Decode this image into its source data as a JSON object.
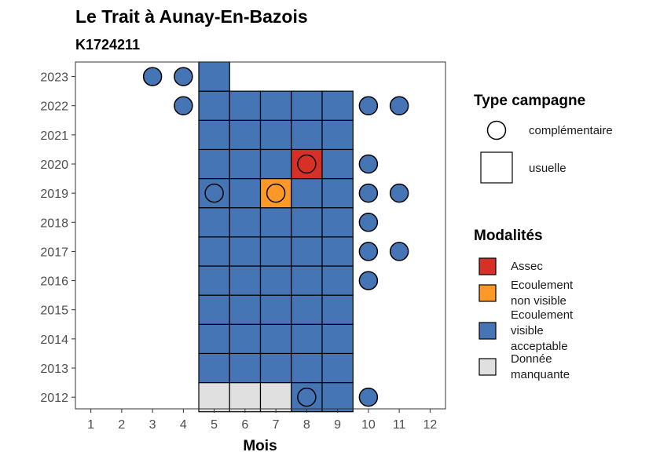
{
  "chart_data": {
    "type": "heatmap",
    "title": "Le Trait à Aunay-En-Bazois",
    "subtitle": "K1724211",
    "xlabel": "Mois",
    "ylabel": "",
    "x_ticks": [
      "1",
      "2",
      "3",
      "4",
      "5",
      "6",
      "7",
      "8",
      "9",
      "10",
      "11",
      "12"
    ],
    "y_ticks": [
      "2012",
      "2013",
      "2014",
      "2015",
      "2016",
      "2017",
      "2018",
      "2019",
      "2020",
      "2021",
      "2022",
      "2023"
    ],
    "xlim": [
      0.5,
      12.5
    ],
    "ylim": [
      2011.6,
      2023.5
    ],
    "grid": false,
    "legend_position": "right",
    "modalites": [
      {
        "key": "assec",
        "label": [
          "Assec"
        ],
        "color": "#d73027"
      },
      {
        "key": "nonvisible",
        "label": [
          "Ecoulement",
          "non visible"
        ],
        "color": "#fe9929"
      },
      {
        "key": "visible",
        "label": [
          "Ecoulement",
          "visible",
          "acceptable"
        ],
        "color": "#4575b4"
      },
      {
        "key": "manquante",
        "label": [
          "Donnée",
          "manquante"
        ],
        "color": "#e0e0e0"
      }
    ],
    "campagne_types": [
      {
        "key": "complementaire",
        "label": "complémentaire",
        "shape": "circle"
      },
      {
        "key": "usuelle",
        "label": "usuelle",
        "shape": "square"
      }
    ],
    "legend_titles": {
      "campagne": "Type campagne",
      "modalites": "Modalités"
    },
    "usuelle": [
      {
        "year": 2012,
        "month": 5,
        "value": "manquante"
      },
      {
        "year": 2012,
        "month": 6,
        "value": "manquante"
      },
      {
        "year": 2012,
        "month": 7,
        "value": "manquante"
      },
      {
        "year": 2012,
        "month": 8,
        "value": "visible"
      },
      {
        "year": 2012,
        "month": 9,
        "value": "visible"
      },
      {
        "year": 2013,
        "month": 5,
        "value": "visible"
      },
      {
        "year": 2013,
        "month": 6,
        "value": "visible"
      },
      {
        "year": 2013,
        "month": 7,
        "value": "visible"
      },
      {
        "year": 2013,
        "month": 8,
        "value": "visible"
      },
      {
        "year": 2013,
        "month": 9,
        "value": "visible"
      },
      {
        "year": 2014,
        "month": 5,
        "value": "visible"
      },
      {
        "year": 2014,
        "month": 6,
        "value": "visible"
      },
      {
        "year": 2014,
        "month": 7,
        "value": "visible"
      },
      {
        "year": 2014,
        "month": 8,
        "value": "visible"
      },
      {
        "year": 2014,
        "month": 9,
        "value": "visible"
      },
      {
        "year": 2015,
        "month": 5,
        "value": "visible"
      },
      {
        "year": 2015,
        "month": 6,
        "value": "visible"
      },
      {
        "year": 2015,
        "month": 7,
        "value": "visible"
      },
      {
        "year": 2015,
        "month": 8,
        "value": "visible"
      },
      {
        "year": 2015,
        "month": 9,
        "value": "visible"
      },
      {
        "year": 2016,
        "month": 5,
        "value": "visible"
      },
      {
        "year": 2016,
        "month": 6,
        "value": "visible"
      },
      {
        "year": 2016,
        "month": 7,
        "value": "visible"
      },
      {
        "year": 2016,
        "month": 8,
        "value": "visible"
      },
      {
        "year": 2016,
        "month": 9,
        "value": "visible"
      },
      {
        "year": 2017,
        "month": 5,
        "value": "visible"
      },
      {
        "year": 2017,
        "month": 6,
        "value": "visible"
      },
      {
        "year": 2017,
        "month": 7,
        "value": "visible"
      },
      {
        "year": 2017,
        "month": 8,
        "value": "visible"
      },
      {
        "year": 2017,
        "month": 9,
        "value": "visible"
      },
      {
        "year": 2018,
        "month": 5,
        "value": "visible"
      },
      {
        "year": 2018,
        "month": 6,
        "value": "visible"
      },
      {
        "year": 2018,
        "month": 7,
        "value": "visible"
      },
      {
        "year": 2018,
        "month": 8,
        "value": "visible"
      },
      {
        "year": 2018,
        "month": 9,
        "value": "visible"
      },
      {
        "year": 2019,
        "month": 5,
        "value": "visible"
      },
      {
        "year": 2019,
        "month": 6,
        "value": "visible"
      },
      {
        "year": 2019,
        "month": 7,
        "value": "nonvisible"
      },
      {
        "year": 2019,
        "month": 8,
        "value": "visible"
      },
      {
        "year": 2019,
        "month": 9,
        "value": "visible"
      },
      {
        "year": 2020,
        "month": 5,
        "value": "visible"
      },
      {
        "year": 2020,
        "month": 6,
        "value": "visible"
      },
      {
        "year": 2020,
        "month": 7,
        "value": "visible"
      },
      {
        "year": 2020,
        "month": 8,
        "value": "assec"
      },
      {
        "year": 2020,
        "month": 9,
        "value": "visible"
      },
      {
        "year": 2021,
        "month": 5,
        "value": "visible"
      },
      {
        "year": 2021,
        "month": 6,
        "value": "visible"
      },
      {
        "year": 2021,
        "month": 7,
        "value": "visible"
      },
      {
        "year": 2021,
        "month": 8,
        "value": "visible"
      },
      {
        "year": 2021,
        "month": 9,
        "value": "visible"
      },
      {
        "year": 2022,
        "month": 5,
        "value": "visible"
      },
      {
        "year": 2022,
        "month": 6,
        "value": "visible"
      },
      {
        "year": 2022,
        "month": 7,
        "value": "visible"
      },
      {
        "year": 2022,
        "month": 8,
        "value": "visible"
      },
      {
        "year": 2022,
        "month": 9,
        "value": "visible"
      },
      {
        "year": 2023,
        "month": 5,
        "value": "visible"
      }
    ],
    "complementaire": [
      {
        "year": 2012,
        "month": 8,
        "value": "visible"
      },
      {
        "year": 2012,
        "month": 10,
        "value": "visible"
      },
      {
        "year": 2016,
        "month": 10,
        "value": "visible"
      },
      {
        "year": 2017,
        "month": 10,
        "value": "visible"
      },
      {
        "year": 2017,
        "month": 11,
        "value": "visible"
      },
      {
        "year": 2018,
        "month": 10,
        "value": "visible"
      },
      {
        "year": 2019,
        "month": 5,
        "value": "visible"
      },
      {
        "year": 2019,
        "month": 7,
        "value": "nonvisible"
      },
      {
        "year": 2019,
        "month": 10,
        "value": "visible"
      },
      {
        "year": 2019,
        "month": 11,
        "value": "visible"
      },
      {
        "year": 2020,
        "month": 8,
        "value": "assec"
      },
      {
        "year": 2020,
        "month": 10,
        "value": "visible"
      },
      {
        "year": 2022,
        "month": 4,
        "value": "visible"
      },
      {
        "year": 2022,
        "month": 10,
        "value": "visible"
      },
      {
        "year": 2022,
        "month": 11,
        "value": "visible"
      },
      {
        "year": 2023,
        "month": 3,
        "value": "visible"
      },
      {
        "year": 2023,
        "month": 4,
        "value": "visible"
      }
    ]
  }
}
